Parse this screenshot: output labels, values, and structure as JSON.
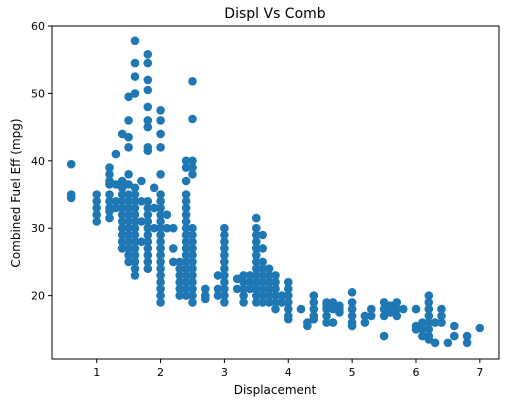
{
  "chart_data": {
    "type": "scatter",
    "title": "Displ Vs Comb",
    "xlabel": "Displacement",
    "ylabel": "Combined Fuel Eff (mpg)",
    "xlim": [
      0.3,
      7.3
    ],
    "ylim": [
      10.6,
      60
    ],
    "xticks": [
      1,
      2,
      3,
      4,
      5,
      6,
      7
    ],
    "yticks": [
      20,
      30,
      40,
      50,
      60
    ],
    "marker_color": "#1f77b4",
    "grid": false,
    "legend": "none",
    "points": [
      [
        0.6,
        39.5
      ],
      [
        0.6,
        35
      ],
      [
        0.6,
        34.5
      ],
      [
        1.0,
        35
      ],
      [
        1.0,
        34
      ],
      [
        1.0,
        33
      ],
      [
        1.0,
        32
      ],
      [
        1.0,
        31
      ],
      [
        1.2,
        39
      ],
      [
        1.2,
        38
      ],
      [
        1.2,
        37
      ],
      [
        1.2,
        36.5
      ],
      [
        1.2,
        35
      ],
      [
        1.2,
        34
      ],
      [
        1.2,
        33
      ],
      [
        1.2,
        32.5
      ],
      [
        1.2,
        31.5
      ],
      [
        1.3,
        41
      ],
      [
        1.3,
        36.5
      ],
      [
        1.3,
        34
      ],
      [
        1.3,
        33
      ],
      [
        1.4,
        44
      ],
      [
        1.4,
        37
      ],
      [
        1.4,
        36
      ],
      [
        1.4,
        35
      ],
      [
        1.4,
        34
      ],
      [
        1.4,
        33
      ],
      [
        1.4,
        32
      ],
      [
        1.4,
        31
      ],
      [
        1.4,
        30
      ],
      [
        1.4,
        29
      ],
      [
        1.4,
        28
      ],
      [
        1.4,
        27
      ],
      [
        1.5,
        49.5
      ],
      [
        1.5,
        46
      ],
      [
        1.5,
        43.5
      ],
      [
        1.5,
        42
      ],
      [
        1.5,
        38
      ],
      [
        1.5,
        36.5
      ],
      [
        1.5,
        35
      ],
      [
        1.5,
        34
      ],
      [
        1.5,
        33
      ],
      [
        1.5,
        32
      ],
      [
        1.5,
        31
      ],
      [
        1.5,
        30
      ],
      [
        1.5,
        29
      ],
      [
        1.5,
        28
      ],
      [
        1.5,
        27
      ],
      [
        1.5,
        26
      ],
      [
        1.5,
        25
      ],
      [
        1.6,
        57.8
      ],
      [
        1.6,
        54.5
      ],
      [
        1.6,
        52.5
      ],
      [
        1.6,
        50
      ],
      [
        1.6,
        36
      ],
      [
        1.6,
        35
      ],
      [
        1.6,
        34
      ],
      [
        1.6,
        33
      ],
      [
        1.6,
        32
      ],
      [
        1.6,
        31
      ],
      [
        1.6,
        30
      ],
      [
        1.6,
        29
      ],
      [
        1.6,
        28
      ],
      [
        1.6,
        27
      ],
      [
        1.6,
        26
      ],
      [
        1.6,
        25
      ],
      [
        1.6,
        24
      ],
      [
        1.6,
        23
      ],
      [
        1.7,
        37
      ],
      [
        1.7,
        34
      ],
      [
        1.7,
        31
      ],
      [
        1.7,
        28
      ],
      [
        1.8,
        55.8
      ],
      [
        1.8,
        54.5
      ],
      [
        1.8,
        52
      ],
      [
        1.8,
        50.5
      ],
      [
        1.8,
        48
      ],
      [
        1.8,
        46
      ],
      [
        1.8,
        45
      ],
      [
        1.8,
        42
      ],
      [
        1.8,
        41.5
      ],
      [
        1.8,
        34
      ],
      [
        1.8,
        33
      ],
      [
        1.8,
        32
      ],
      [
        1.8,
        31
      ],
      [
        1.8,
        30
      ],
      [
        1.8,
        29
      ],
      [
        1.8,
        28
      ],
      [
        1.8,
        27
      ],
      [
        1.8,
        26
      ],
      [
        1.8,
        25
      ],
      [
        1.8,
        24
      ],
      [
        1.9,
        36
      ],
      [
        1.9,
        33
      ],
      [
        1.9,
        30
      ],
      [
        2.0,
        47.5
      ],
      [
        2.0,
        46
      ],
      [
        2.0,
        44
      ],
      [
        2.0,
        42
      ],
      [
        2.0,
        38
      ],
      [
        2.0,
        35
      ],
      [
        2.0,
        34
      ],
      [
        2.0,
        33
      ],
      [
        2.0,
        32
      ],
      [
        2.0,
        31
      ],
      [
        2.0,
        30
      ],
      [
        2.0,
        29
      ],
      [
        2.0,
        28
      ],
      [
        2.0,
        27
      ],
      [
        2.0,
        26
      ],
      [
        2.0,
        25
      ],
      [
        2.0,
        24
      ],
      [
        2.0,
        23
      ],
      [
        2.0,
        22
      ],
      [
        2.0,
        21
      ],
      [
        2.0,
        20
      ],
      [
        2.0,
        19
      ],
      [
        2.1,
        32
      ],
      [
        2.1,
        30
      ],
      [
        2.2,
        30
      ],
      [
        2.2,
        27
      ],
      [
        2.2,
        25
      ],
      [
        2.3,
        25
      ],
      [
        2.3,
        24
      ],
      [
        2.3,
        23
      ],
      [
        2.3,
        22
      ],
      [
        2.3,
        21
      ],
      [
        2.3,
        20
      ],
      [
        2.4,
        40
      ],
      [
        2.4,
        39
      ],
      [
        2.4,
        37
      ],
      [
        2.4,
        35
      ],
      [
        2.4,
        34
      ],
      [
        2.4,
        33
      ],
      [
        2.4,
        32
      ],
      [
        2.4,
        31
      ],
      [
        2.4,
        30
      ],
      [
        2.4,
        29
      ],
      [
        2.4,
        28
      ],
      [
        2.4,
        27
      ],
      [
        2.4,
        26
      ],
      [
        2.4,
        25
      ],
      [
        2.4,
        24
      ],
      [
        2.4,
        23
      ],
      [
        2.4,
        22
      ],
      [
        2.4,
        21
      ],
      [
        2.4,
        20
      ],
      [
        2.5,
        51.8
      ],
      [
        2.5,
        46.2
      ],
      [
        2.5,
        40
      ],
      [
        2.5,
        39
      ],
      [
        2.5,
        38
      ],
      [
        2.5,
        30
      ],
      [
        2.5,
        29
      ],
      [
        2.5,
        28
      ],
      [
        2.5,
        27
      ],
      [
        2.5,
        26
      ],
      [
        2.5,
        25
      ],
      [
        2.5,
        24
      ],
      [
        2.5,
        23
      ],
      [
        2.5,
        22
      ],
      [
        2.5,
        21
      ],
      [
        2.5,
        20
      ],
      [
        2.5,
        19
      ],
      [
        2.7,
        21
      ],
      [
        2.7,
        20
      ],
      [
        2.7,
        19.5
      ],
      [
        2.9,
        23
      ],
      [
        2.9,
        21
      ],
      [
        2.9,
        20
      ],
      [
        3.0,
        30
      ],
      [
        3.0,
        29
      ],
      [
        3.0,
        28
      ],
      [
        3.0,
        27
      ],
      [
        3.0,
        26
      ],
      [
        3.0,
        25
      ],
      [
        3.0,
        24
      ],
      [
        3.0,
        23
      ],
      [
        3.0,
        22
      ],
      [
        3.0,
        21
      ],
      [
        3.0,
        20
      ],
      [
        3.0,
        19
      ],
      [
        3.2,
        22.5
      ],
      [
        3.2,
        21
      ],
      [
        3.3,
        23
      ],
      [
        3.3,
        22
      ],
      [
        3.3,
        21
      ],
      [
        3.3,
        20
      ],
      [
        3.3,
        19
      ],
      [
        3.4,
        23
      ],
      [
        3.4,
        22
      ],
      [
        3.4,
        21
      ],
      [
        3.5,
        31.5
      ],
      [
        3.5,
        30
      ],
      [
        3.5,
        29
      ],
      [
        3.5,
        28
      ],
      [
        3.5,
        27
      ],
      [
        3.5,
        26
      ],
      [
        3.5,
        25
      ],
      [
        3.5,
        24
      ],
      [
        3.5,
        23
      ],
      [
        3.5,
        22
      ],
      [
        3.5,
        21
      ],
      [
        3.5,
        20
      ],
      [
        3.5,
        19
      ],
      [
        3.6,
        29
      ],
      [
        3.6,
        27
      ],
      [
        3.6,
        25
      ],
      [
        3.6,
        24
      ],
      [
        3.6,
        23
      ],
      [
        3.6,
        22
      ],
      [
        3.6,
        21
      ],
      [
        3.6,
        20
      ],
      [
        3.6,
        19
      ],
      [
        3.7,
        24
      ],
      [
        3.7,
        23
      ],
      [
        3.7,
        22
      ],
      [
        3.7,
        21
      ],
      [
        3.7,
        20
      ],
      [
        3.7,
        19
      ],
      [
        3.8,
        23
      ],
      [
        3.8,
        22
      ],
      [
        3.8,
        21
      ],
      [
        3.8,
        20
      ],
      [
        3.8,
        19
      ],
      [
        3.8,
        18
      ],
      [
        3.9,
        20
      ],
      [
        3.9,
        19
      ],
      [
        4.0,
        22
      ],
      [
        4.0,
        21
      ],
      [
        4.0,
        20
      ],
      [
        4.0,
        19
      ],
      [
        4.0,
        18
      ],
      [
        4.0,
        17
      ],
      [
        4.0,
        16.5
      ],
      [
        4.2,
        18
      ],
      [
        4.3,
        16
      ],
      [
        4.3,
        15.5
      ],
      [
        4.4,
        20
      ],
      [
        4.4,
        19
      ],
      [
        4.4,
        18
      ],
      [
        4.4,
        17
      ],
      [
        4.4,
        16.5
      ],
      [
        4.6,
        19
      ],
      [
        4.6,
        18.5
      ],
      [
        4.6,
        18
      ],
      [
        4.6,
        17
      ],
      [
        4.6,
        16
      ],
      [
        4.7,
        19
      ],
      [
        4.7,
        18
      ],
      [
        4.7,
        16
      ],
      [
        4.8,
        18.5
      ],
      [
        4.8,
        18
      ],
      [
        4.8,
        17.5
      ],
      [
        5.0,
        20.5
      ],
      [
        5.0,
        19
      ],
      [
        5.0,
        18
      ],
      [
        5.0,
        17
      ],
      [
        5.0,
        16
      ],
      [
        5.0,
        15.5
      ],
      [
        5.2,
        17
      ],
      [
        5.2,
        16
      ],
      [
        5.3,
        18
      ],
      [
        5.3,
        17
      ],
      [
        5.5,
        19
      ],
      [
        5.5,
        18
      ],
      [
        5.5,
        17
      ],
      [
        5.5,
        14
      ],
      [
        5.6,
        18.5
      ],
      [
        5.6,
        17.5
      ],
      [
        5.7,
        19
      ],
      [
        5.7,
        18
      ],
      [
        5.7,
        17
      ],
      [
        5.8,
        18
      ],
      [
        6.0,
        18
      ],
      [
        6.0,
        15.5
      ],
      [
        6.0,
        15
      ],
      [
        6.1,
        16
      ],
      [
        6.1,
        15
      ],
      [
        6.1,
        14
      ],
      [
        6.2,
        20
      ],
      [
        6.2,
        19
      ],
      [
        6.2,
        18
      ],
      [
        6.2,
        17
      ],
      [
        6.2,
        16
      ],
      [
        6.2,
        15
      ],
      [
        6.2,
        14
      ],
      [
        6.2,
        13.5
      ],
      [
        6.3,
        16
      ],
      [
        6.3,
        13
      ],
      [
        6.4,
        18
      ],
      [
        6.4,
        17
      ],
      [
        6.4,
        16
      ],
      [
        6.5,
        13
      ],
      [
        6.6,
        15.5
      ],
      [
        6.6,
        14
      ],
      [
        6.8,
        14
      ],
      [
        6.8,
        13
      ],
      [
        7.0,
        15.2
      ]
    ]
  }
}
